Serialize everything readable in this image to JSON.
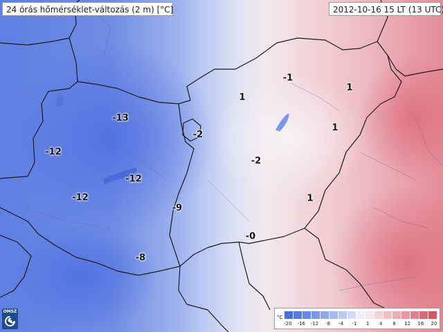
{
  "header": {
    "title": "24 órás hőmérséklet-változás (2 m) [°C]",
    "datetime": "2012-10-16 15 LT (13 UTC)"
  },
  "logo": {
    "text": "OMSZ"
  },
  "map_values": [
    "-13",
    "-12",
    "-12",
    "-12",
    "-9",
    "-8",
    "-2",
    "-2",
    "-0",
    "1",
    "-1",
    "1",
    "1",
    "1"
  ],
  "legend": {
    "unit": "°C",
    "labels": [
      "-20",
      "-16",
      "-12",
      "-8",
      "-4",
      "-1",
      "1",
      "4",
      "8",
      "12",
      "16",
      "20"
    ],
    "colors": [
      "#4a6de0",
      "#5779e3",
      "#6987e6",
      "#7c96e9",
      "#90a7ec",
      "#a6b8ef",
      "#bccaf3",
      "#d3dcf7",
      "#eef0f8",
      "#f7e6e8",
      "#f3d3d7",
      "#efc0c6",
      "#ebacb4",
      "#e697a1",
      "#e1818d",
      "#dc6b79",
      "#d65665"
    ]
  },
  "colors": {
    "cold": "#4a6de0",
    "neutral": "#eef0f8",
    "warm": "#e1818d",
    "border": "#1a1a1a"
  }
}
